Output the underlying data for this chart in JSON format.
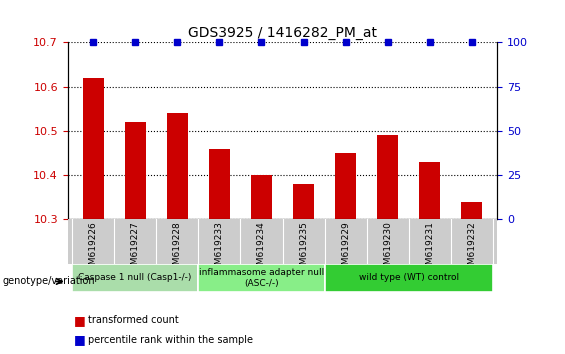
{
  "title": "GDS3925 / 1416282_PM_at",
  "samples": [
    "GSM619226",
    "GSM619227",
    "GSM619228",
    "GSM619233",
    "GSM619234",
    "GSM619235",
    "GSM619229",
    "GSM619230",
    "GSM619231",
    "GSM619232"
  ],
  "bar_values": [
    10.62,
    10.52,
    10.54,
    10.46,
    10.4,
    10.38,
    10.45,
    10.49,
    10.43,
    10.34
  ],
  "percentile_values": [
    100,
    100,
    100,
    100,
    100,
    100,
    100,
    100,
    100,
    100
  ],
  "bar_color": "#cc0000",
  "dot_color": "#0000cc",
  "ylim_left": [
    10.3,
    10.7
  ],
  "ylim_right": [
    0,
    100
  ],
  "yticks_left": [
    10.3,
    10.4,
    10.5,
    10.6,
    10.7
  ],
  "yticks_right": [
    0,
    25,
    50,
    75,
    100
  ],
  "groups": [
    {
      "label": "Caspase 1 null (Casp1-/-)",
      "indices": [
        0,
        1,
        2
      ],
      "color": "#aaddaa"
    },
    {
      "label": "inflammasome adapter null\n(ASC-/-)",
      "indices": [
        3,
        4,
        5
      ],
      "color": "#88ee88"
    },
    {
      "label": "wild type (WT) control",
      "indices": [
        6,
        7,
        8,
        9
      ],
      "color": "#33cc33"
    }
  ],
  "legend_bar_label": "transformed count",
  "legend_dot_label": "percentile rank within the sample",
  "genotype_label": "genotype/variation",
  "tick_area_color": "#cccccc"
}
